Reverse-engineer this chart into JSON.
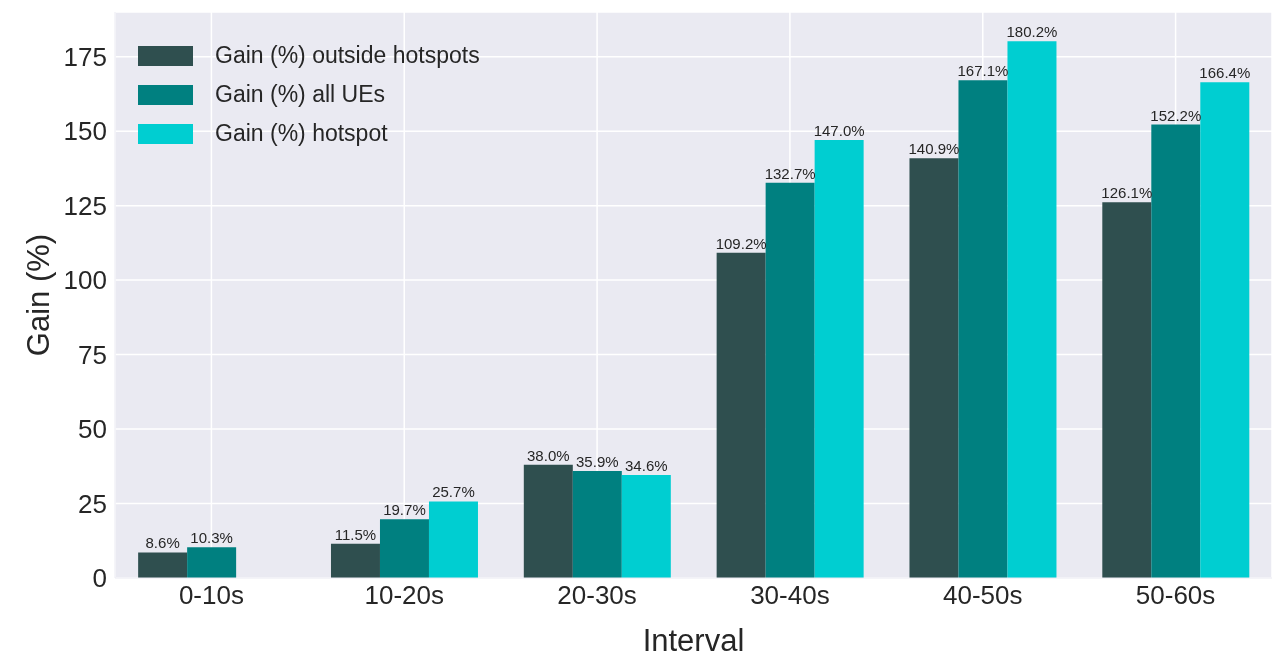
{
  "chart_data": {
    "type": "bar",
    "xlabel": "Interval",
    "ylabel": "Gain (%)",
    "categories": [
      "0-10s",
      "10-20s",
      "20-30s",
      "30-40s",
      "40-50s",
      "50-60s"
    ],
    "series": [
      {
        "name": "Gain (%) outside hotspots",
        "color": "#2f4f4f",
        "values": [
          8.6,
          11.5,
          38.0,
          109.2,
          140.9,
          126.1
        ],
        "value_labels": [
          "8.6%",
          "11.5%",
          "38.0%",
          "109.2%",
          "140.9%",
          "126.1%"
        ]
      },
      {
        "name": "Gain (%) all UEs",
        "color": "#008080",
        "values": [
          10.3,
          19.7,
          35.9,
          132.7,
          167.1,
          152.2
        ],
        "value_labels": [
          "10.3%",
          "19.7%",
          "35.9%",
          "132.7%",
          "167.1%",
          "152.2%"
        ]
      },
      {
        "name": "Gain (%) hotspot",
        "color": "#00ced1",
        "values": [
          null,
          25.7,
          34.6,
          147.0,
          180.2,
          166.4
        ],
        "value_labels": [
          null,
          "25.7%",
          "34.6%",
          "147.0%",
          "180.2%",
          "166.4%"
        ]
      }
    ],
    "ylim": [
      0,
      190
    ],
    "yticks": [
      0,
      25,
      50,
      75,
      100,
      125,
      150,
      175
    ],
    "grid": true,
    "legend": "top left"
  }
}
